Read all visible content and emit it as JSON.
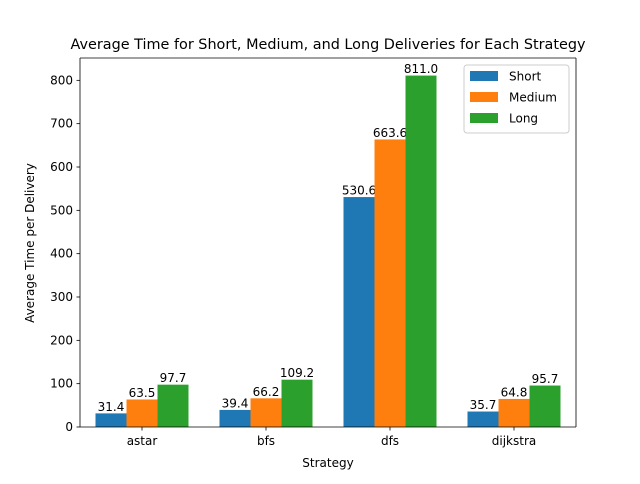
{
  "chart_data": {
    "type": "bar",
    "title": "Average Time for Short, Medium, and Long Deliveries for Each Strategy",
    "xlabel": "Strategy",
    "ylabel": "Average Time per Delivery",
    "categories": [
      "astar",
      "bfs",
      "dfs",
      "dijkstra"
    ],
    "ylim": [
      0,
      851.55
    ],
    "yticks": [
      0,
      100,
      200,
      300,
      400,
      500,
      600,
      700,
      800
    ],
    "grid": false,
    "legend_position": "top-right",
    "series": [
      {
        "name": "Short",
        "color": "#1f77b4",
        "values": [
          31.4,
          39.4,
          530.6,
          35.7
        ],
        "labels": [
          "31.4",
          "39.4",
          "530.6",
          "35.7"
        ]
      },
      {
        "name": "Medium",
        "color": "#ff7f0e",
        "values": [
          63.5,
          66.2,
          663.6,
          64.8
        ],
        "labels": [
          "63.5",
          "66.2",
          "663.6",
          "64.8"
        ]
      },
      {
        "name": "Long",
        "color": "#2ca02c",
        "values": [
          97.7,
          109.2,
          811.0,
          95.7
        ],
        "labels": [
          "97.7",
          "109.2",
          "811.0",
          "95.7"
        ]
      }
    ]
  }
}
